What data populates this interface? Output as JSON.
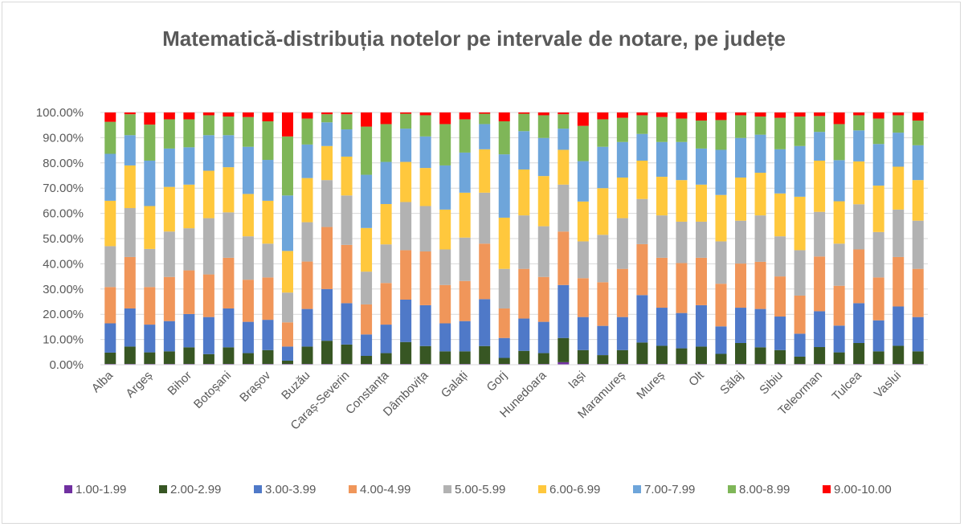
{
  "chart_data": {
    "type": "bar",
    "stacked": "percent",
    "title": "Matematică-distribuția notelor pe intervale de notare, pe județe",
    "xlabel": "",
    "ylabel": "",
    "ylim": [
      0,
      100
    ],
    "y_ticks": [
      "0.00%",
      "10.00%",
      "20.00%",
      "30.00%",
      "40.00%",
      "50.00%",
      "60.00%",
      "70.00%",
      "80.00%",
      "90.00%",
      "100.00%"
    ],
    "grid": true,
    "legend_position": "bottom",
    "categories": [
      "Alba",
      "",
      "Argeș",
      "",
      "Bihor",
      "",
      "Botoșani",
      "",
      "Brașov",
      "",
      "Buzău",
      "",
      "Caraș-Severin",
      "",
      "Constanța",
      "",
      "Dâmbovița",
      "",
      "Galați",
      "",
      "Gorj",
      "",
      "Hunedoara",
      "",
      "Iași",
      "",
      "Maramureș",
      "",
      "Mureș",
      "",
      "Olt",
      "",
      "Sălaj",
      "",
      "Sibiu",
      "",
      "Teleorman",
      "",
      "Tulcea",
      "",
      "Vaslui",
      ""
    ],
    "series": [
      {
        "name": "1.00-1.99",
        "color": "#7030a0",
        "values": [
          0.3,
          0.3,
          0.3,
          0.3,
          0.3,
          0.3,
          0.3,
          0.3,
          0.3,
          0.3,
          0.3,
          0.3,
          0.3,
          0.3,
          0.3,
          0.3,
          0.3,
          0.3,
          0.3,
          0.3,
          0.3,
          0.3,
          0.3,
          1.0,
          0.3,
          0.3,
          0.3,
          0.3,
          0.3,
          0.3,
          0.3,
          0.3,
          0.3,
          0.3,
          0.3,
          0.3,
          0.3,
          0.3,
          0.3,
          0.3,
          0.3,
          0.3
        ]
      },
      {
        "name": "2.00-2.99",
        "color": "#375623",
        "values": [
          4.5,
          6.9,
          4.6,
          5.0,
          6.6,
          3.9,
          6.6,
          4.3,
          5.5,
          1.3,
          6.9,
          9.2,
          7.7,
          3.2,
          4.3,
          8.7,
          7.1,
          5.0,
          5.0,
          7.1,
          2.4,
          5.2,
          4.3,
          9.6,
          5.5,
          3.5,
          5.5,
          8.5,
          7.2,
          6.2,
          6.9,
          4.0,
          8.3,
          6.6,
          5.5,
          2.9,
          6.7,
          4.6,
          8.3,
          5.0,
          7.2,
          5.0
        ]
      },
      {
        "name": "3.00-3.99",
        "color": "#4f79c8",
        "values": [
          11.6,
          15.1,
          11.0,
          12.0,
          13.2,
          14.7,
          15.4,
          12.4,
          12.0,
          5.6,
          14.9,
          20.5,
          16.4,
          8.5,
          11.3,
          16.8,
          16.2,
          11.1,
          12.0,
          18.6,
          7.9,
          12.8,
          12.4,
          21.0,
          13.1,
          11.6,
          13.1,
          18.8,
          15.1,
          14.0,
          16.4,
          10.9,
          14.0,
          15.2,
          13.3,
          9.1,
          14.2,
          10.6,
          15.8,
          12.3,
          15.6,
          13.6
        ]
      },
      {
        "name": "4.00-4.99",
        "color": "#f0965a",
        "values": [
          14.4,
          20.4,
          14.9,
          17.5,
          17.3,
          16.9,
          20.1,
          16.7,
          16.8,
          9.6,
          18.8,
          24.6,
          23.1,
          11.9,
          16.5,
          19.6,
          21.3,
          15.2,
          15.9,
          22.0,
          11.7,
          19.7,
          17.8,
          21.2,
          15.4,
          17.3,
          19.1,
          20.2,
          19.8,
          19.8,
          18.8,
          16.9,
          17.5,
          18.7,
          15.9,
          15.1,
          21.7,
          15.8,
          21.3,
          17.0,
          19.6,
          19.1
        ]
      },
      {
        "name": "5.00-5.99",
        "color": "#b2b2b2",
        "values": [
          16.2,
          19.4,
          15.1,
          18.0,
          16.7,
          22.3,
          18.0,
          17.2,
          13.4,
          11.8,
          15.6,
          18.6,
          19.6,
          13.0,
          15.3,
          19.1,
          18.0,
          14.1,
          17.2,
          20.2,
          15.7,
          21.2,
          20.1,
          18.6,
          14.6,
          18.8,
          20.1,
          17.9,
          16.8,
          16.4,
          14.3,
          16.8,
          17.0,
          18.4,
          15.9,
          18.0,
          17.7,
          16.7,
          17.9,
          18.0,
          18.8,
          19.1
        ]
      },
      {
        "name": "6.00-6.99",
        "color": "#ffc83d",
        "values": [
          18.0,
          16.9,
          17.0,
          17.7,
          17.3,
          18.8,
          17.9,
          16.8,
          17.0,
          16.5,
          17.5,
          13.5,
          15.4,
          17.3,
          16.0,
          15.9,
          15.1,
          15.8,
          17.8,
          17.2,
          20.3,
          18.2,
          19.9,
          13.8,
          15.8,
          18.5,
          16.1,
          15.2,
          15.3,
          16.5,
          14.7,
          18.4,
          17.1,
          16.9,
          17.0,
          21.2,
          20.3,
          16.8,
          17.0,
          18.4,
          17.0,
          16.1
        ]
      },
      {
        "name": "7.00-7.99",
        "color": "#6ea5da",
        "values": [
          18.6,
          12.0,
          18.0,
          15.2,
          14.8,
          14.1,
          12.7,
          18.7,
          16.2,
          22.0,
          13.3,
          9.4,
          10.8,
          21.1,
          16.7,
          13.2,
          12.5,
          17.5,
          15.9,
          10.0,
          25.1,
          15.2,
          15.1,
          8.4,
          16.0,
          16.4,
          14.1,
          10.6,
          13.8,
          15.1,
          14.3,
          17.9,
          15.7,
          15.1,
          17.5,
          20.1,
          11.4,
          16.3,
          12.3,
          16.5,
          13.5,
          13.8
        ]
      },
      {
        "name": "8.00-8.99",
        "color": "#7fb658",
        "values": [
          12.7,
          8.3,
          14.3,
          11.6,
          11.1,
          7.9,
          7.4,
          11.8,
          15.3,
          23.4,
          10.3,
          3.2,
          6.0,
          19.1,
          15.0,
          5.9,
          8.4,
          16.4,
          13.2,
          4.1,
          13.1,
          6.9,
          9.0,
          5.7,
          14.0,
          10.9,
          9.6,
          7.4,
          9.9,
          9.3,
          11.1,
          11.8,
          9.0,
          7.2,
          12.5,
          11.7,
          6.3,
          14.3,
          6.0,
          10.1,
          6.9,
          9.8
        ]
      },
      {
        "name": "9.00-10.00",
        "color": "#ff0000",
        "values": [
          3.7,
          0.7,
          4.8,
          2.7,
          2.7,
          1.1,
          1.6,
          1.8,
          3.5,
          9.5,
          2.4,
          0.7,
          0.7,
          5.6,
          4.6,
          0.5,
          1.1,
          4.6,
          2.7,
          0.5,
          3.5,
          0.5,
          1.1,
          0.7,
          5.3,
          2.7,
          2.1,
          1.1,
          1.8,
          2.4,
          3.2,
          3.0,
          1.1,
          1.6,
          2.1,
          1.6,
          1.4,
          4.6,
          1.1,
          2.4,
          1.1,
          3.2
        ]
      }
    ]
  }
}
